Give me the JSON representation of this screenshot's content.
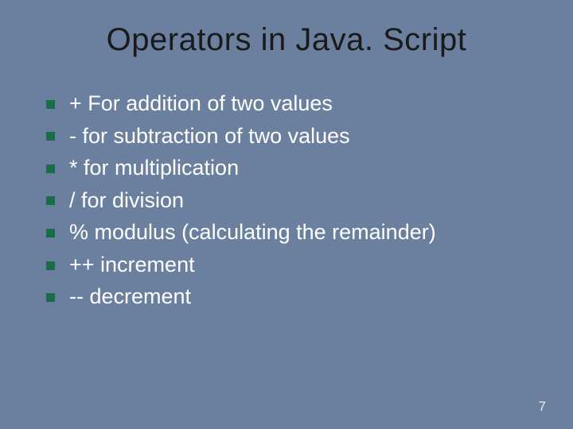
{
  "slide": {
    "background_color": "#6b7f9e",
    "title": {
      "text": "Operators in Java. Script",
      "color": "#1a1a1a",
      "fontsize": 40
    },
    "bullet_marker": {
      "color": "#1a6b4a",
      "size": 11
    },
    "bullets": {
      "color": "#ffffff",
      "fontsize": 27,
      "items": [
        "+ For addition of two values",
        "- for subtraction of two values",
        "* for multiplication",
        "/ for division",
        "% modulus (calculating the remainder)",
        "++ increment",
        "-- decrement"
      ]
    },
    "page_number": {
      "text": "7",
      "color": "#e8e8e8",
      "fontsize": 17
    }
  }
}
